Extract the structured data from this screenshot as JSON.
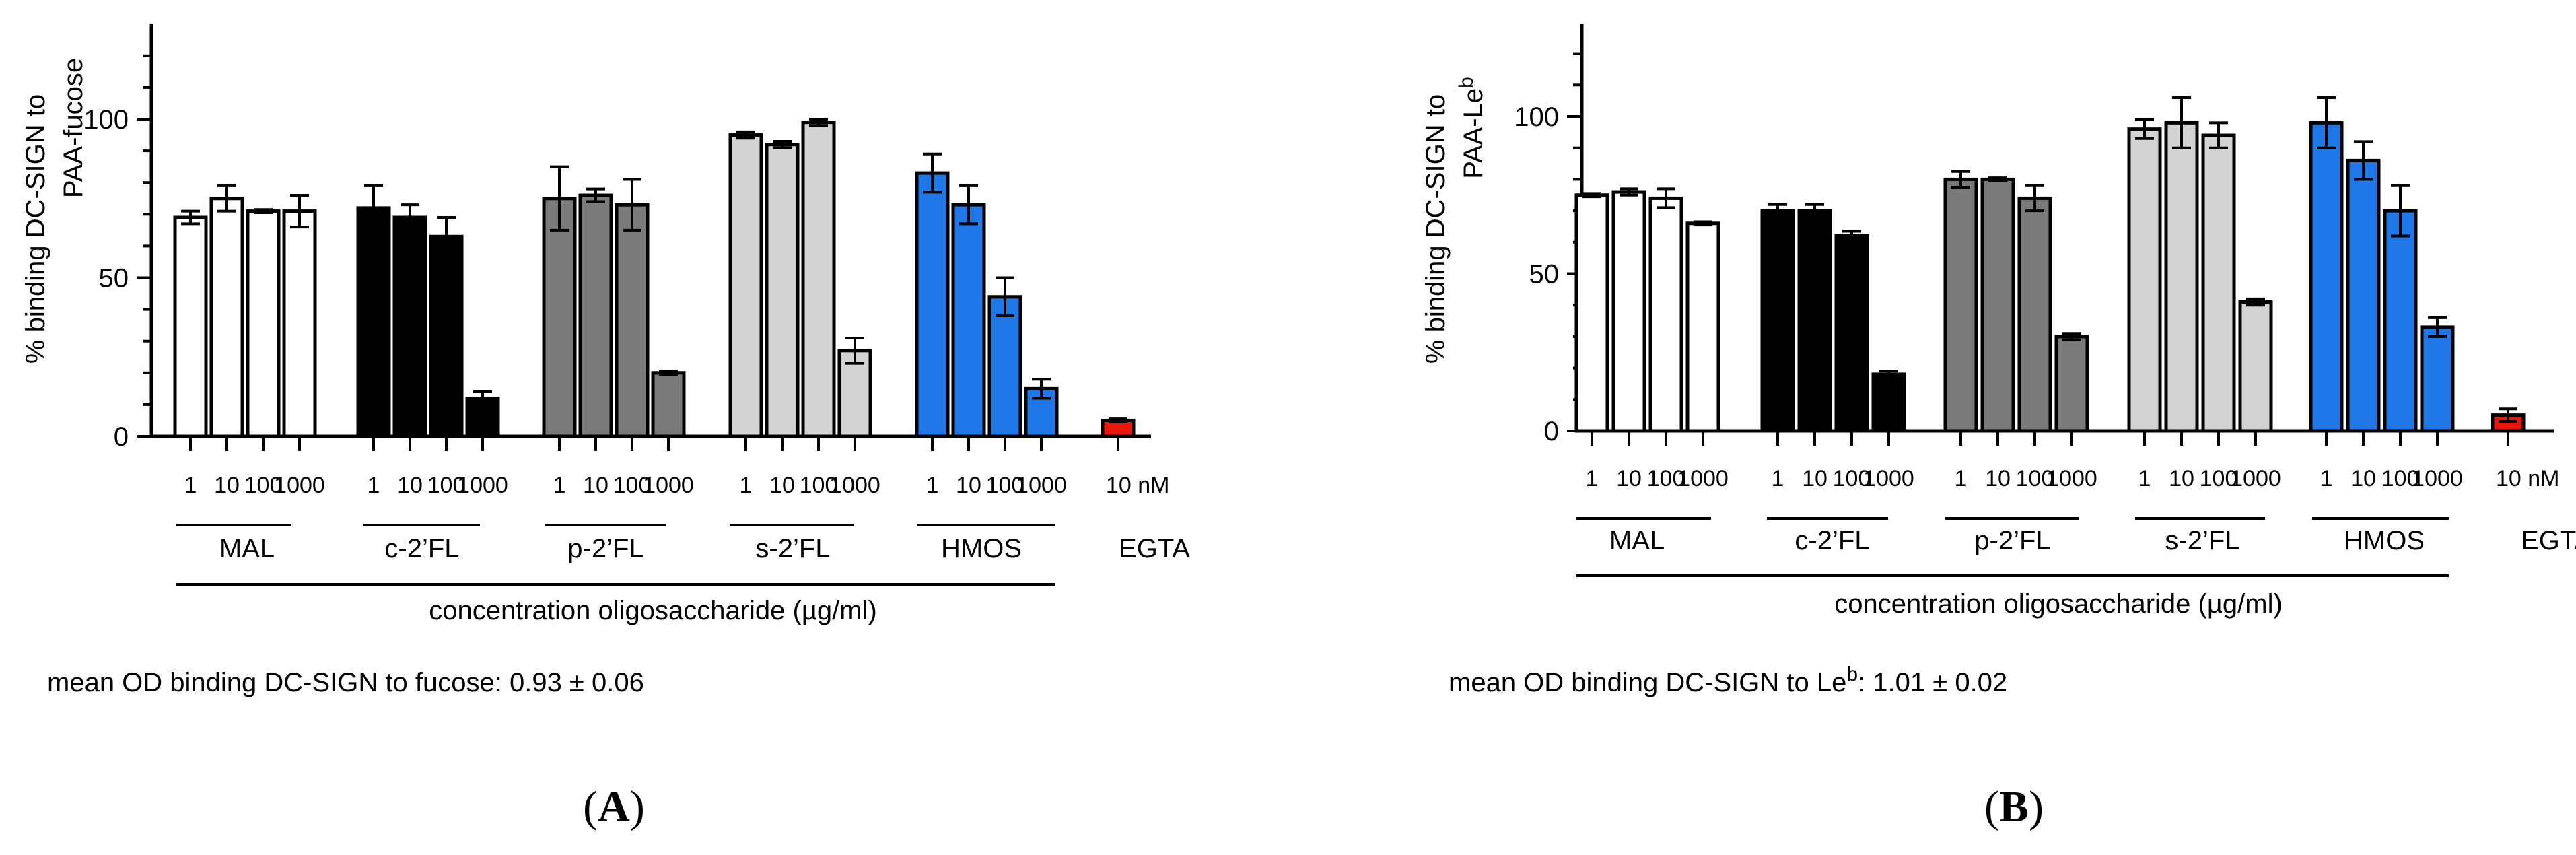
{
  "chart_data": [
    {
      "type": "bar",
      "panel_label": "(A)",
      "ylabel_line1": "% binding DC-SIGN to",
      "ylabel_line2": "PAA-fucose",
      "ylabel_sup": "",
      "xlabel": "concentration oligosaccharide (µg/ml)",
      "yticks": [
        "0",
        "50",
        "100"
      ],
      "ylim": [
        0,
        130
      ],
      "footnote_main": "mean OD binding DC-SIGN to fucose",
      "footnote_sup": "",
      "footnote_value": ": 0.93 ± 0.06",
      "groups": [
        {
          "name": "MAL",
          "color": "#ffffff",
          "tick_labels": [
            "1",
            "10",
            "100",
            "1000"
          ],
          "values": [
            69,
            75,
            71,
            71
          ],
          "errors": [
            2,
            4,
            0.5,
            5
          ]
        },
        {
          "name": "c-2’FL",
          "color": "#000000",
          "tick_labels": [
            "1",
            "10",
            "100",
            "1000"
          ],
          "values": [
            72,
            69,
            63,
            12
          ],
          "errors": [
            7,
            4,
            6,
            2
          ]
        },
        {
          "name": "p-2’FL",
          "color": "#7a7a7a",
          "tick_labels": [
            "1",
            "10",
            "100",
            "1000"
          ],
          "values": [
            75,
            76,
            73,
            20
          ],
          "errors": [
            10,
            2,
            8,
            0.5
          ]
        },
        {
          "name": "s-2’FL",
          "color": "#d3d3d3",
          "tick_labels": [
            "1",
            "10",
            "100",
            "1000"
          ],
          "values": [
            95,
            92,
            99,
            27
          ],
          "errors": [
            1,
            1,
            1,
            4
          ]
        },
        {
          "name": "HMOS",
          "color": "#1f77e8",
          "tick_labels": [
            "1",
            "10",
            "100",
            "1000"
          ],
          "values": [
            83,
            73,
            44,
            15
          ],
          "errors": [
            6,
            6,
            6,
            3
          ]
        },
        {
          "name": "EGTA",
          "color": "#e8160c",
          "tick_labels": [
            "10 nM"
          ],
          "values": [
            5
          ],
          "errors": [
            0.5
          ]
        }
      ]
    },
    {
      "type": "bar",
      "panel_label": "(B)",
      "ylabel_line1": "% binding DC-SIGN to",
      "ylabel_line2": "PAA-Le",
      "ylabel_sup": "b",
      "xlabel": "concentration oligosaccharide (µg/ml)",
      "yticks": [
        "0",
        "50",
        "100"
      ],
      "ylim": [
        0,
        130
      ],
      "footnote_main": "mean OD binding DC-SIGN to Le",
      "footnote_sup": "b",
      "footnote_value": ": 1.01 ± 0.02",
      "groups": [
        {
          "name": "MAL",
          "color": "#ffffff",
          "tick_labels": [
            "1",
            "10",
            "100",
            "1000"
          ],
          "values": [
            75,
            76,
            74,
            66
          ],
          "errors": [
            0.5,
            1,
            3,
            0.5
          ]
        },
        {
          "name": "c-2’FL",
          "color": "#000000",
          "tick_labels": [
            "1",
            "10",
            "100",
            "1000"
          ],
          "values": [
            70,
            70,
            62,
            18
          ],
          "errors": [
            2,
            2,
            1.5,
            1
          ]
        },
        {
          "name": "p-2’FL",
          "color": "#7a7a7a",
          "tick_labels": [
            "1",
            "10",
            "100",
            "1000"
          ],
          "values": [
            80,
            80,
            74,
            30
          ],
          "errors": [
            2.5,
            0.5,
            4,
            1
          ]
        },
        {
          "name": "s-2’FL",
          "color": "#d3d3d3",
          "tick_labels": [
            "1",
            "10",
            "100",
            "1000"
          ],
          "values": [
            96,
            98,
            94,
            41
          ],
          "errors": [
            3,
            8,
            4,
            1
          ]
        },
        {
          "name": "HMOS",
          "color": "#1f77e8",
          "tick_labels": [
            "1",
            "10",
            "100",
            "1000"
          ],
          "values": [
            98,
            86,
            70,
            33
          ],
          "errors": [
            8,
            6,
            8,
            3
          ]
        },
        {
          "name": "EGTA",
          "color": "#e8160c",
          "tick_labels": [
            "10 nM"
          ],
          "values": [
            5
          ],
          "errors": [
            2
          ]
        }
      ]
    }
  ]
}
